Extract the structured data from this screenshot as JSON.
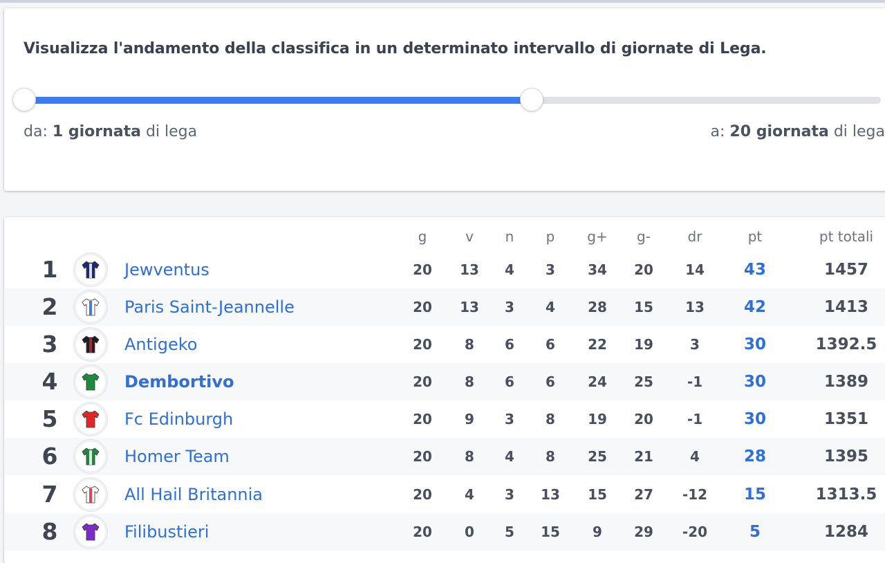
{
  "range_panel": {
    "headline": "Visualizza l'andamento della classifica in un determinato intervallo di giornate di Lega.",
    "from_prefix": "da: ",
    "from_value": "1 giornata",
    "from_suffix": " di lega",
    "to_prefix": "a: ",
    "to_value": "20 giornata",
    "to_suffix": " di lega",
    "slider_fill_fraction": 0.592
  },
  "table": {
    "columns": [
      "g",
      "v",
      "n",
      "p",
      "g+",
      "g-",
      "dr",
      "pt",
      "pt totali"
    ],
    "rows": [
      {
        "rank": "1",
        "team": "Jewventus",
        "g": "20",
        "v": "13",
        "n": "4",
        "p": "3",
        "gf": "34",
        "ga": "20",
        "dr": "14",
        "pt": "43",
        "tot": "1457",
        "shirt": "#1d2a7a",
        "stripe": "#ffffff",
        "highlight": false
      },
      {
        "rank": "2",
        "team": "Paris Saint-Jeannelle",
        "g": "20",
        "v": "13",
        "n": "3",
        "p": "4",
        "gf": "28",
        "ga": "15",
        "dr": "13",
        "pt": "42",
        "tot": "1413",
        "shirt": "#ffffff",
        "stripe": "#2a64c8",
        "highlight": false
      },
      {
        "rank": "3",
        "team": "Antigeko",
        "g": "20",
        "v": "8",
        "n": "6",
        "p": "6",
        "gf": "22",
        "ga": "19",
        "dr": "3",
        "pt": "30",
        "tot": "1392.5",
        "shirt": "#1d1d24",
        "stripe": "#c0283a",
        "highlight": false
      },
      {
        "rank": "4",
        "team": "Dembortivo",
        "g": "20",
        "v": "8",
        "n": "6",
        "p": "6",
        "gf": "24",
        "ga": "25",
        "dr": "-1",
        "pt": "30",
        "tot": "1389",
        "shirt": "#1f8a3e",
        "stripe": "#1f8a3e",
        "highlight": true
      },
      {
        "rank": "5",
        "team": "Fc Edinburgh",
        "g": "20",
        "v": "9",
        "n": "3",
        "p": "8",
        "gf": "19",
        "ga": "20",
        "dr": "-1",
        "pt": "30",
        "tot": "1351",
        "shirt": "#e32626",
        "stripe": "#e32626",
        "highlight": false
      },
      {
        "rank": "6",
        "team": "Homer Team",
        "g": "20",
        "v": "8",
        "n": "4",
        "p": "8",
        "gf": "25",
        "ga": "21",
        "dr": "4",
        "pt": "28",
        "tot": "1395",
        "shirt": "#1f8a3e",
        "stripe": "#ffffff",
        "highlight": false
      },
      {
        "rank": "7",
        "team": "All Hail Britannia",
        "g": "20",
        "v": "4",
        "n": "3",
        "p": "13",
        "gf": "15",
        "ga": "27",
        "dr": "-12",
        "pt": "15",
        "tot": "1313.5",
        "shirt": "#ffffff",
        "stripe": "#d6283a",
        "highlight": false
      },
      {
        "rank": "8",
        "team": "Filibustieri",
        "g": "20",
        "v": "0",
        "n": "5",
        "p": "15",
        "gf": "9",
        "ga": "29",
        "dr": "-20",
        "pt": "5",
        "tot": "1284",
        "shirt": "#7a2bc9",
        "stripe": "#7a2bc9",
        "highlight": false
      }
    ]
  }
}
